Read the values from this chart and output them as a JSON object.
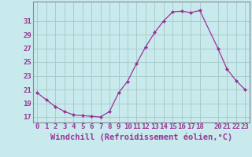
{
  "x": [
    0,
    1,
    2,
    3,
    4,
    5,
    6,
    7,
    8,
    9,
    10,
    11,
    12,
    13,
    14,
    15,
    16,
    17,
    18,
    20,
    21,
    22,
    23
  ],
  "y": [
    20.5,
    19.5,
    18.5,
    17.8,
    17.3,
    17.2,
    17.1,
    17.0,
    17.8,
    20.5,
    22.2,
    24.8,
    27.2,
    29.3,
    31.0,
    32.3,
    32.4,
    32.2,
    32.5,
    27.0,
    24.0,
    22.3,
    21.0
  ],
  "line_color": "#993399",
  "marker_color": "#993399",
  "bg_color": "#c8eaec",
  "grid_color": "#aacccc",
  "xlabel": "Windchill (Refroidissement éolien,°C)",
  "xlabel_color": "#993399",
  "tick_color": "#993399",
  "ylabel_ticks": [
    17,
    19,
    21,
    23,
    25,
    27,
    29,
    31
  ],
  "xlim": [
    -0.5,
    23.5
  ],
  "ylim": [
    16.2,
    33.8
  ],
  "xticks": [
    0,
    1,
    2,
    3,
    4,
    5,
    6,
    7,
    8,
    9,
    10,
    11,
    12,
    13,
    14,
    15,
    16,
    17,
    18,
    20,
    21,
    22,
    23
  ],
  "xtick_labels": [
    "0",
    "1",
    "2",
    "3",
    "4",
    "5",
    "6",
    "7",
    "8",
    "9",
    "10",
    "11",
    "12",
    "13",
    "14",
    "15",
    "16",
    "17",
    "18",
    "20",
    "21",
    "22",
    "23"
  ],
  "font_size": 6.5,
  "xlabel_font_size": 7.5,
  "spine_color": "#888899"
}
